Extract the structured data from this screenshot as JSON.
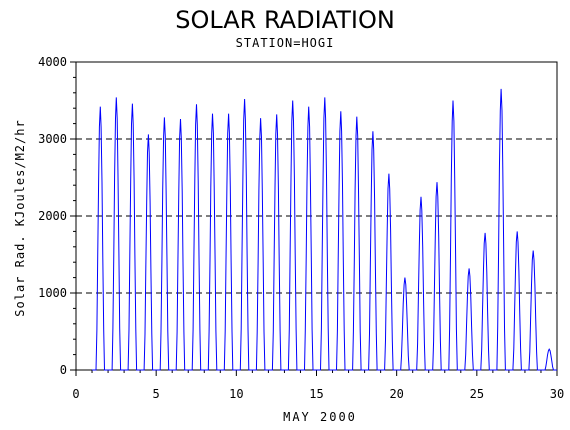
{
  "chart_data": {
    "type": "line",
    "title": "SOLAR RADIATION",
    "subtitle": "STATION=HOGI",
    "xlabel": "MAY 2000",
    "ylabel": "Solar Rad. KJoules/M2/hr",
    "xlim": [
      0,
      30
    ],
    "ylim": [
      0,
      4000
    ],
    "x_ticks": [
      0,
      5,
      10,
      15,
      20,
      25,
      30
    ],
    "y_ticks": [
      0,
      1000,
      2000,
      3000,
      4000
    ],
    "grid": "horizontal dashed",
    "series_color": "#0000ff",
    "daily_peaks": [
      {
        "day": 1,
        "peak": 3420
      },
      {
        "day": 2,
        "peak": 3540
      },
      {
        "day": 3,
        "peak": 3460
      },
      {
        "day": 4,
        "peak": 3060
      },
      {
        "day": 5,
        "peak": 3280
      },
      {
        "day": 6,
        "peak": 3260
      },
      {
        "day": 7,
        "peak": 3450
      },
      {
        "day": 8,
        "peak": 3330
      },
      {
        "day": 9,
        "peak": 3330
      },
      {
        "day": 10,
        "peak": 3520
      },
      {
        "day": 11,
        "peak": 3270
      },
      {
        "day": 12,
        "peak": 3320
      },
      {
        "day": 13,
        "peak": 3500
      },
      {
        "day": 14,
        "peak": 3420
      },
      {
        "day": 15,
        "peak": 3540
      },
      {
        "day": 16,
        "peak": 3360
      },
      {
        "day": 17,
        "peak": 3290
      },
      {
        "day": 18,
        "peak": 3100
      },
      {
        "day": 19,
        "peak": 2550
      },
      {
        "day": 20,
        "peak": 1200
      },
      {
        "day": 21,
        "peak": 2250
      },
      {
        "day": 22,
        "peak": 2440
      },
      {
        "day": 23,
        "peak": 3500
      },
      {
        "day": 24,
        "peak": 1320
      },
      {
        "day": 25,
        "peak": 1780
      },
      {
        "day": 26,
        "peak": 3650
      },
      {
        "day": 27,
        "peak": 1800
      },
      {
        "day": 28,
        "peak": 1550
      },
      {
        "day": 29,
        "peak": 270
      }
    ]
  }
}
